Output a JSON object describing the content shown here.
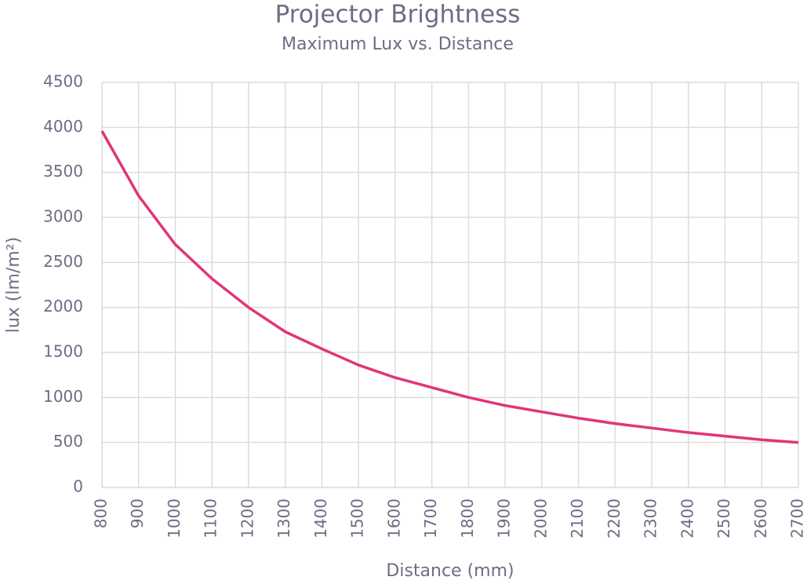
{
  "chart_data": {
    "type": "line",
    "title": "Projector Brightness",
    "subtitle": "Maximum Lux vs. Distance",
    "x_label": "Distance (mm)",
    "y_label": "lux (lm/m²)",
    "x": [
      800,
      900,
      1000,
      1100,
      1200,
      1300,
      1400,
      1500,
      1600,
      1700,
      1800,
      1900,
      2000,
      2100,
      2200,
      2300,
      2400,
      2500,
      2600,
      2700
    ],
    "series": [
      {
        "color": "#e0357a",
        "values": [
          3960,
          3240,
          2700,
          2320,
          2000,
          1730,
          1540,
          1360,
          1220,
          1110,
          1000,
          910,
          840,
          770,
          710,
          660,
          610,
          570,
          530,
          500
        ]
      }
    ],
    "xlim": [
      800,
      2700
    ],
    "xticks": [
      800,
      900,
      1000,
      1100,
      1200,
      1300,
      1400,
      1500,
      1600,
      1700,
      1800,
      1900,
      2000,
      2100,
      2200,
      2300,
      2400,
      2500,
      2600,
      2700
    ],
    "ylim": [
      0,
      4500
    ],
    "yticks": [
      0,
      500,
      1000,
      1500,
      2000,
      2500,
      3000,
      3500,
      4000,
      4500
    ],
    "grid": true
  }
}
